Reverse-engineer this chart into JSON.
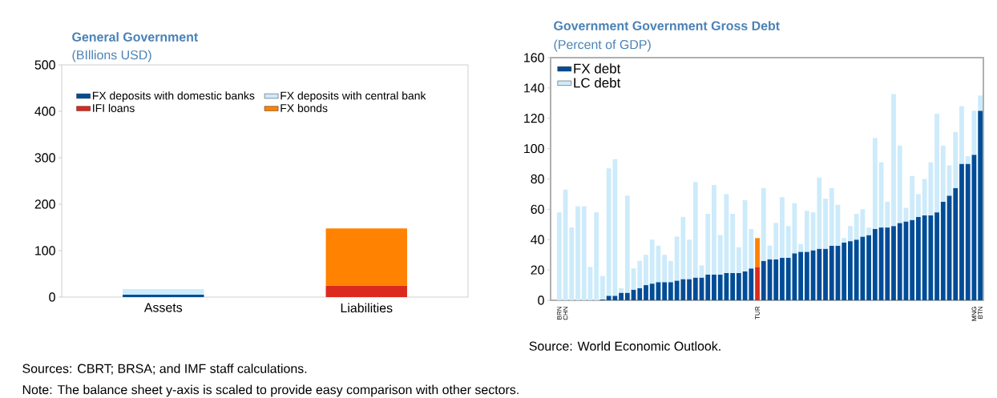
{
  "chart_data": [
    {
      "type": "bar",
      "stacked": true,
      "title": "General Government",
      "subtitle": "(BIllions USD)",
      "categories": [
        "Assets",
        "Liabilities"
      ],
      "series": [
        {
          "name": "FX deposits with domestic banks",
          "color": "#004c97",
          "values": [
            5,
            0
          ]
        },
        {
          "name": "FX deposits with central bank",
          "color": "#cdebfa",
          "values": [
            12,
            0
          ]
        },
        {
          "name": "IFI loans",
          "color": "#dc2a1e",
          "values": [
            0,
            25
          ]
        },
        {
          "name": "FX bonds",
          "color": "#ff8200",
          "values": [
            0,
            123
          ]
        }
      ],
      "ylim": [
        0,
        500
      ],
      "yticks": [
        0,
        100,
        200,
        300,
        400,
        500
      ],
      "legend": "top",
      "annotations": [
        "Sources: CBRT; BRSA; and IMF staff calculations.",
        "Note: The balance sheet y-axis is scaled to provide easy comparison with other sectors."
      ]
    },
    {
      "type": "bar",
      "stacked": true,
      "title": "Government Government Gross Debt",
      "subtitle": "(Percent of GDP)",
      "categories": [
        "BRN",
        "CHN",
        null,
        null,
        null,
        null,
        null,
        null,
        null,
        null,
        null,
        null,
        null,
        null,
        null,
        null,
        null,
        null,
        null,
        null,
        null,
        null,
        null,
        null,
        null,
        null,
        null,
        null,
        null,
        null,
        null,
        null,
        "TUR",
        null,
        null,
        null,
        null,
        null,
        null,
        null,
        null,
        null,
        null,
        null,
        null,
        null,
        null,
        null,
        null,
        null,
        null,
        null,
        null,
        null,
        null,
        null,
        null,
        null,
        null,
        null,
        null,
        null,
        null,
        null,
        null,
        null,
        null,
        "MNG",
        "BTN"
      ],
      "series": [
        {
          "name": "FX debt",
          "color": "#004c97",
          "values": [
            0,
            0,
            0,
            0,
            0,
            0,
            0,
            0.5,
            3,
            3,
            5,
            5,
            7,
            8,
            10,
            11,
            12,
            12,
            12,
            13,
            14,
            14,
            15,
            15,
            17,
            17,
            17,
            18,
            18,
            18,
            19,
            21,
            22,
            26,
            27,
            27,
            28,
            28,
            31,
            32,
            32,
            33,
            34,
            34,
            36,
            36,
            38,
            39,
            40,
            42,
            43,
            47,
            48,
            48,
            49,
            51,
            52,
            53,
            55,
            56,
            56,
            58,
            65,
            69,
            74,
            90,
            90,
            96,
            125
          ],
          "colors": [
            "#004c97",
            "#004c97",
            "#004c97",
            "#004c97",
            "#004c97",
            "#004c97",
            "#004c97",
            "#004c97",
            "#004c97",
            "#004c97",
            "#004c97",
            "#004c97",
            "#004c97",
            "#004c97",
            "#004c97",
            "#004c97",
            "#004c97",
            "#004c97",
            "#004c97",
            "#004c97",
            "#004c97",
            "#004c97",
            "#004c97",
            "#004c97",
            "#004c97",
            "#004c97",
            "#004c97",
            "#004c97",
            "#004c97",
            "#004c97",
            "#004c97",
            "#004c97",
            "#dc2a1e",
            "#004c97",
            "#004c97",
            "#004c97",
            "#004c97",
            "#004c97",
            "#004c97",
            "#004c97",
            "#004c97",
            "#004c97",
            "#004c97",
            "#004c97",
            "#004c97",
            "#004c97",
            "#004c97",
            "#004c97",
            "#004c97",
            "#004c97",
            "#004c97",
            "#004c97",
            "#004c97",
            "#004c97",
            "#004c97",
            "#004c97",
            "#004c97",
            "#004c97",
            "#004c97",
            "#004c97",
            "#004c97",
            "#004c97",
            "#004c97",
            "#004c97",
            "#004c97",
            "#004c97",
            "#004c97",
            "#004c97",
            "#004c97"
          ]
        },
        {
          "name": "LC debt",
          "color": "#cdebfa",
          "values": [
            58,
            73,
            48,
            62,
            62,
            22,
            58,
            15.5,
            84,
            90,
            3,
            64,
            14,
            18,
            20,
            29,
            24,
            18,
            14,
            29,
            41,
            26,
            63,
            8,
            40,
            59,
            26,
            52,
            39,
            17,
            47,
            26,
            19,
            48,
            9,
            24,
            40,
            21,
            33,
            5,
            27,
            25,
            47,
            33,
            38,
            27,
            3,
            10,
            17,
            18,
            5,
            60,
            43,
            17,
            87,
            51,
            9,
            29,
            15,
            24,
            35,
            65,
            37,
            20,
            37,
            38,
            5,
            29,
            10
          ],
          "colors": [
            "#cdebfa",
            "#cdebfa",
            "#cdebfa",
            "#cdebfa",
            "#cdebfa",
            "#cdebfa",
            "#cdebfa",
            "#cdebfa",
            "#cdebfa",
            "#cdebfa",
            "#cdebfa",
            "#cdebfa",
            "#cdebfa",
            "#cdebfa",
            "#cdebfa",
            "#cdebfa",
            "#cdebfa",
            "#cdebfa",
            "#cdebfa",
            "#cdebfa",
            "#cdebfa",
            "#cdebfa",
            "#cdebfa",
            "#cdebfa",
            "#cdebfa",
            "#cdebfa",
            "#cdebfa",
            "#cdebfa",
            "#cdebfa",
            "#cdebfa",
            "#cdebfa",
            "#cdebfa",
            "#ff8200",
            "#cdebfa",
            "#cdebfa",
            "#cdebfa",
            "#cdebfa",
            "#cdebfa",
            "#cdebfa",
            "#cdebfa",
            "#cdebfa",
            "#cdebfa",
            "#cdebfa",
            "#cdebfa",
            "#cdebfa",
            "#cdebfa",
            "#cdebfa",
            "#cdebfa",
            "#cdebfa",
            "#cdebfa",
            "#cdebfa",
            "#cdebfa",
            "#cdebfa",
            "#cdebfa",
            "#cdebfa",
            "#cdebfa",
            "#cdebfa",
            "#cdebfa",
            "#cdebfa",
            "#cdebfa",
            "#cdebfa",
            "#cdebfa",
            "#cdebfa",
            "#cdebfa",
            "#cdebfa",
            "#cdebfa",
            "#cdebfa",
            "#cdebfa",
            "#cdebfa"
          ]
        }
      ],
      "ylim": [
        0,
        160
      ],
      "yticks": [
        0,
        20,
        40,
        60,
        80,
        100,
        120,
        140,
        160
      ],
      "legend": "top left",
      "annotations": [
        "Source: World Economic Outlook."
      ]
    }
  ]
}
